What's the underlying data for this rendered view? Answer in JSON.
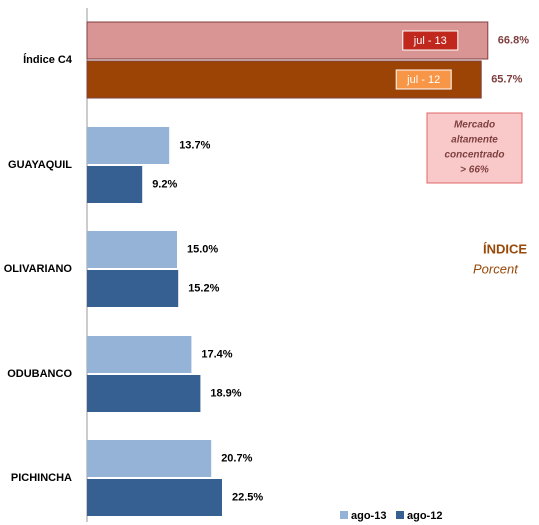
{
  "chart_data": {
    "type": "bar",
    "orientation": "horizontal",
    "categories": [
      "Índice C4",
      "GUAYAQUIL",
      "OLIVARIANO",
      "ODUBANCO",
      "PICHINCHA"
    ],
    "series": [
      {
        "name": "jul - 13",
        "color": "#d99594",
        "label_box_color": "#c0281e",
        "values": [
          66.8,
          null,
          null,
          null,
          null
        ],
        "value_labels": [
          "66.8%",
          null,
          null,
          null,
          null
        ]
      },
      {
        "name": "jul - 12",
        "color": "#9c4406",
        "label_box_color": "#f79646",
        "values": [
          65.7,
          null,
          null,
          null,
          null
        ],
        "value_labels": [
          "65.7%",
          null,
          null,
          null,
          null
        ]
      },
      {
        "name": "ago-13",
        "color": "#95b3d7",
        "values": [
          null,
          13.7,
          15.0,
          17.4,
          20.7
        ],
        "value_labels": [
          null,
          "13.7%",
          "15.0%",
          "17.4%",
          "20.7%"
        ]
      },
      {
        "name": "ago-12",
        "color": "#366092",
        "values": [
          null,
          9.2,
          15.2,
          18.9,
          22.5
        ],
        "value_labels": [
          null,
          "9.2%",
          "15.2%",
          "18.9%",
          "22.5%"
        ]
      }
    ],
    "xlim": [
      0,
      75
    ],
    "annotation": [
      "Mercado",
      "altamente",
      "concentrado",
      "> 66%"
    ],
    "side_title": "ÍNDICE",
    "side_subtitle": "Porcent",
    "legend": "bottom-right"
  }
}
